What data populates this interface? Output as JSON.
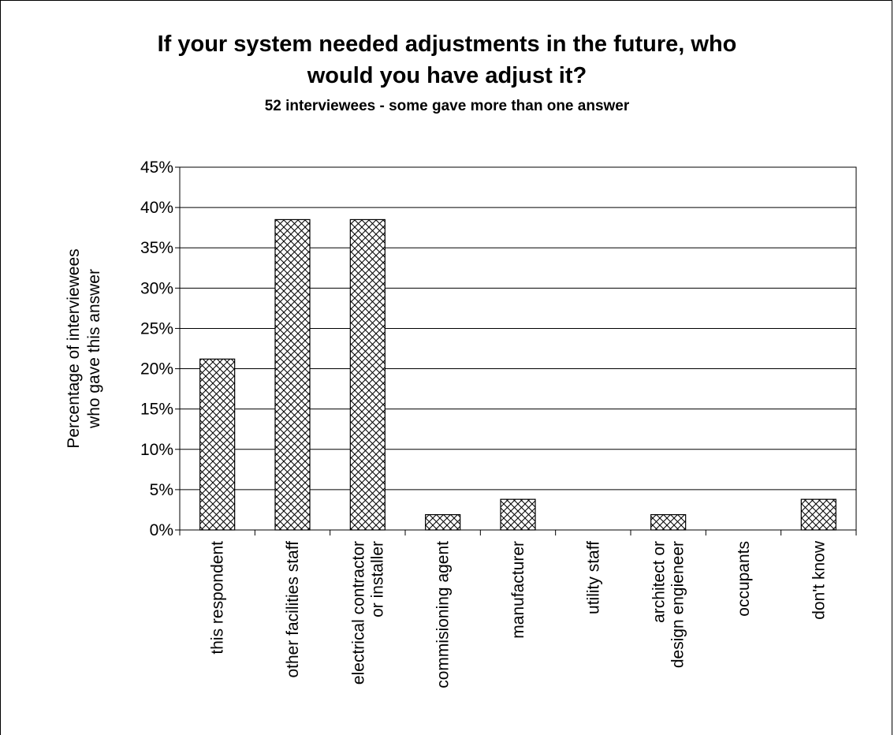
{
  "chart_data": {
    "type": "bar",
    "title_lines": [
      "If your system needed adjustments in the future, who",
      "would you have adjust it?"
    ],
    "subtitle": "52 interviewees - some gave more than one answer",
    "ylabel_lines": [
      "Percentage of interviewees",
      "who gave this answer"
    ],
    "xlabel": "",
    "categories": [
      [
        "this respondent"
      ],
      [
        "other facilities staff"
      ],
      [
        "electrical contractor",
        "or installer"
      ],
      [
        "commisioning agent"
      ],
      [
        "manufacturer"
      ],
      [
        "utility staff"
      ],
      [
        "architect or",
        "design engieneer"
      ],
      [
        "occupants"
      ],
      [
        "don't know"
      ]
    ],
    "values": [
      21.2,
      38.5,
      38.5,
      1.9,
      3.8,
      0,
      1.9,
      0,
      3.8
    ],
    "ylim": [
      0,
      45
    ],
    "yticks": [
      0,
      5,
      10,
      15,
      20,
      25,
      30,
      35,
      40,
      45
    ],
    "ytick_suffix": "%",
    "grid": true,
    "legend": "none",
    "bar_fill": "crosshatch",
    "colors": {
      "bar_stroke": "#000000",
      "hatch": "#000000",
      "grid": "#000000"
    }
  }
}
